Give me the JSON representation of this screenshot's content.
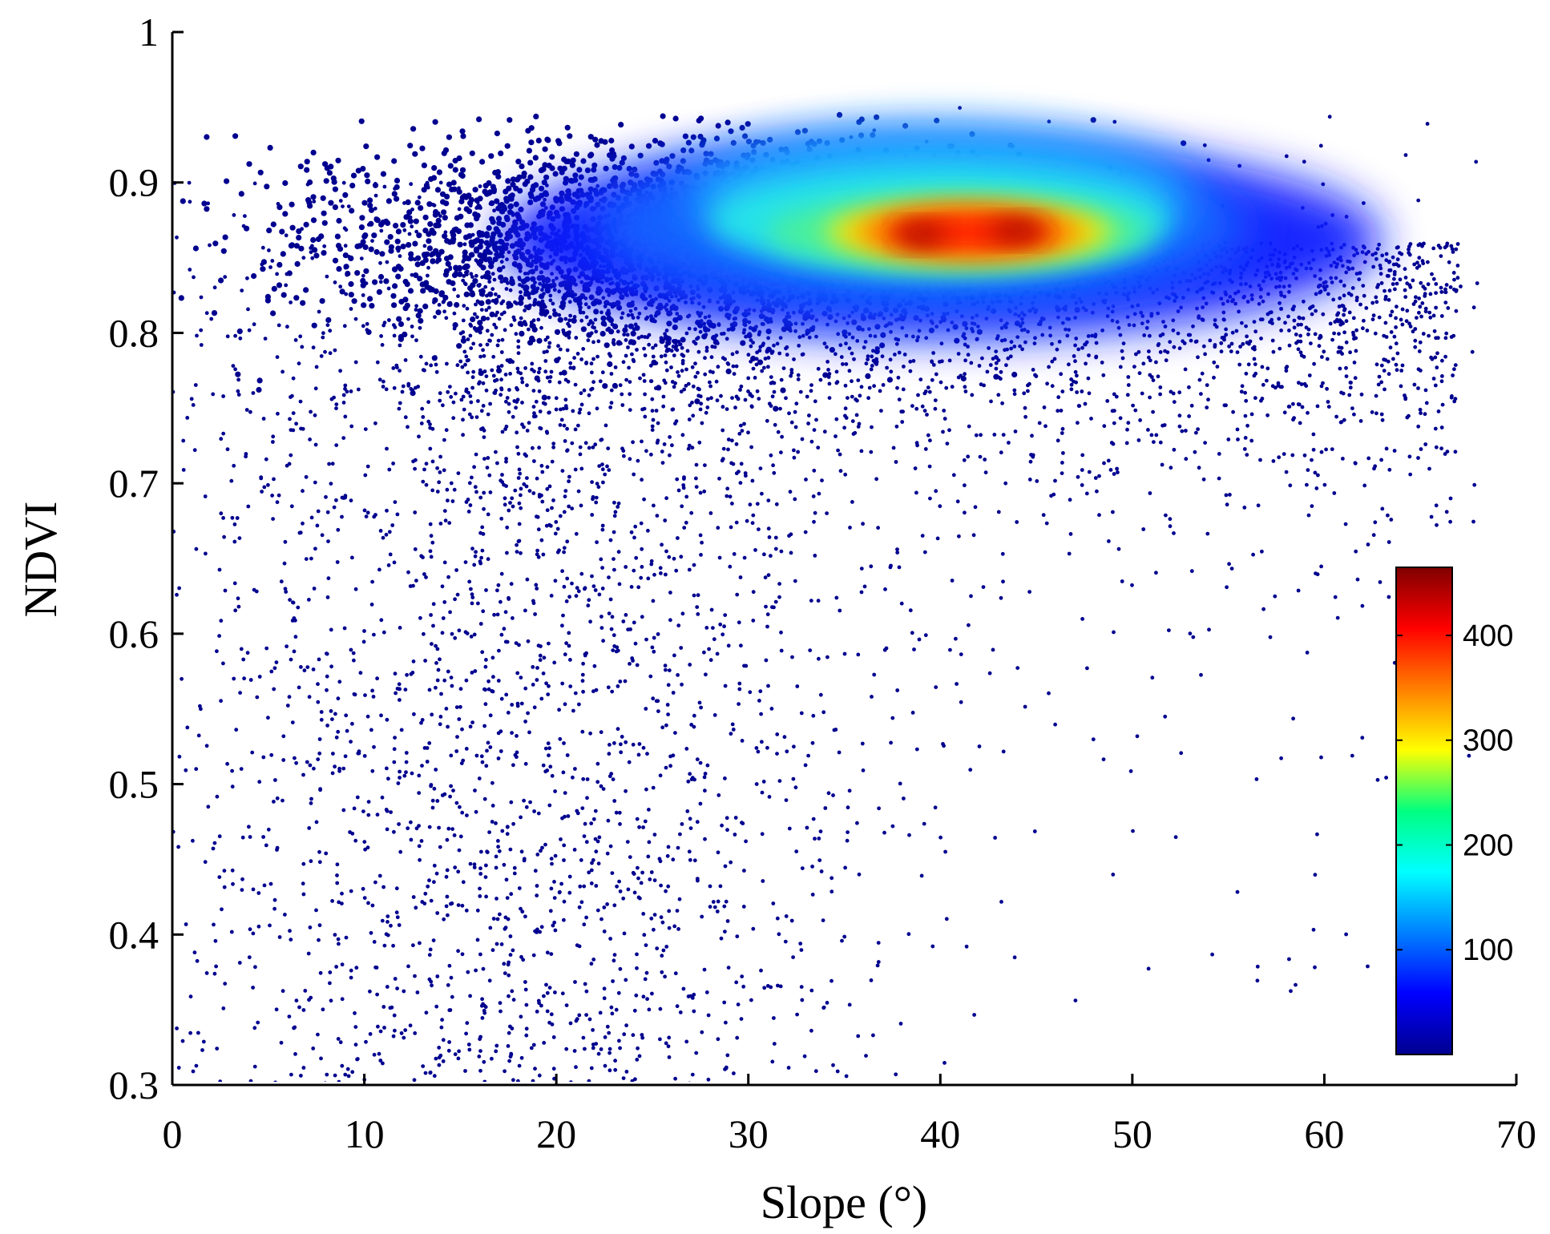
{
  "chart_data": {
    "type": "scatter",
    "subtype": "density-colored scatter",
    "title": "",
    "xlabel": "Slope (°)",
    "ylabel": "NDVI",
    "xlim": [
      0,
      70
    ],
    "ylim": [
      0.3,
      1
    ],
    "x_ticks": [
      "0",
      "10",
      "20",
      "30",
      "40",
      "50",
      "60",
      "70"
    ],
    "y_ticks": [
      "0.3",
      "0.4",
      "0.5",
      "0.6",
      "0.7",
      "0.8",
      "0.9",
      "1"
    ],
    "grid": false,
    "point_color_default": "#00008f",
    "density_peaks": [
      {
        "x": 39,
        "y": 0.865,
        "density": 460
      },
      {
        "x": 44,
        "y": 0.868,
        "density": 460
      }
    ],
    "colorbar": {
      "colormap": "jet",
      "range": [
        0,
        465
      ],
      "ticks": [
        "100",
        "200",
        "300",
        "400"
      ],
      "placement": "inside-bottom-right"
    }
  }
}
